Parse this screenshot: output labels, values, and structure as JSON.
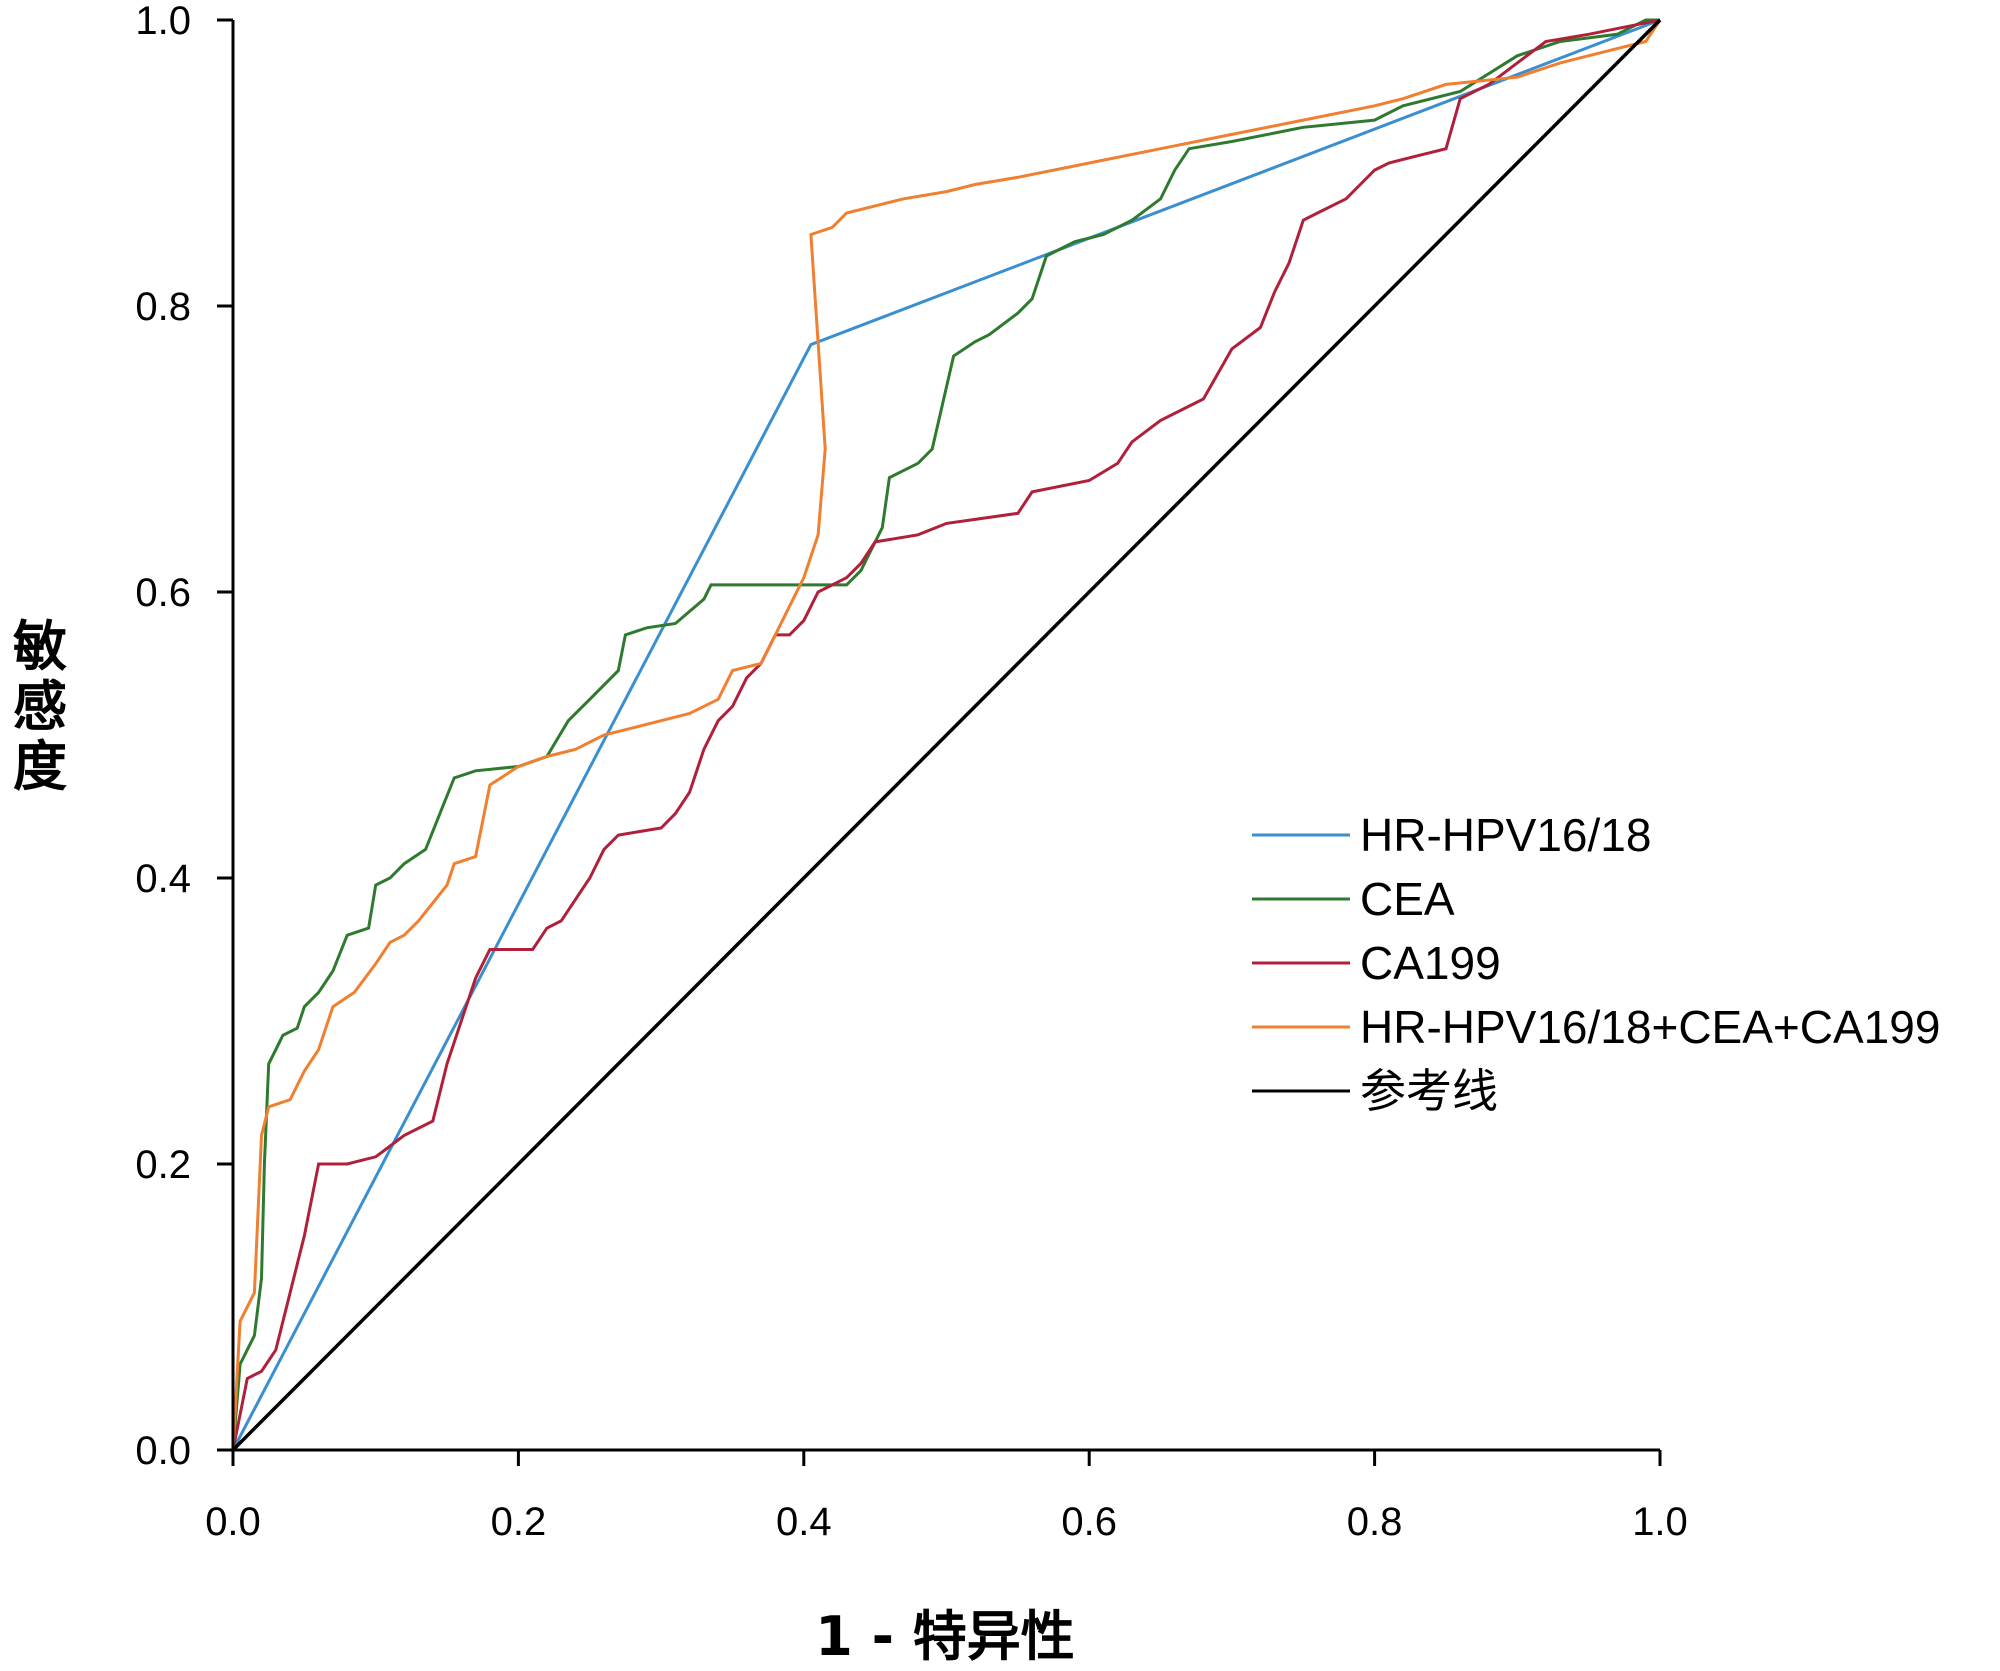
{
  "chart_data": {
    "type": "line",
    "title": "",
    "xlabel": "1 - 特异性",
    "ylabel": "敏感度",
    "xlim": [
      0,
      1
    ],
    "ylim": [
      0,
      1
    ],
    "x_ticks": [
      "0.0",
      "0.2",
      "0.4",
      "0.6",
      "0.8",
      "1.0"
    ],
    "y_ticks": [
      "0.0",
      "0.2",
      "0.4",
      "0.6",
      "0.8",
      "1.0"
    ],
    "legend_position": "right-middle",
    "series": [
      {
        "name": "HR-HPV16/18",
        "color": "#3a8fd0",
        "points": [
          [
            0,
            0
          ],
          [
            0.405,
            0.773
          ],
          [
            1,
            1
          ]
        ]
      },
      {
        "name": "CEA",
        "color": "#2e7a2e",
        "points": [
          [
            0,
            0
          ],
          [
            0.005,
            0.06
          ],
          [
            0.015,
            0.08
          ],
          [
            0.02,
            0.12
          ],
          [
            0.022,
            0.2
          ],
          [
            0.025,
            0.27
          ],
          [
            0.035,
            0.29
          ],
          [
            0.045,
            0.295
          ],
          [
            0.05,
            0.31
          ],
          [
            0.06,
            0.32
          ],
          [
            0.07,
            0.335
          ],
          [
            0.08,
            0.36
          ],
          [
            0.095,
            0.365
          ],
          [
            0.1,
            0.395
          ],
          [
            0.11,
            0.4
          ],
          [
            0.12,
            0.41
          ],
          [
            0.135,
            0.42
          ],
          [
            0.145,
            0.445
          ],
          [
            0.155,
            0.47
          ],
          [
            0.17,
            0.475
          ],
          [
            0.2,
            0.478
          ],
          [
            0.22,
            0.485
          ],
          [
            0.235,
            0.51
          ],
          [
            0.25,
            0.525
          ],
          [
            0.27,
            0.545
          ],
          [
            0.275,
            0.57
          ],
          [
            0.29,
            0.575
          ],
          [
            0.31,
            0.578
          ],
          [
            0.33,
            0.595
          ],
          [
            0.335,
            0.605
          ],
          [
            0.43,
            0.605
          ],
          [
            0.44,
            0.615
          ],
          [
            0.455,
            0.645
          ],
          [
            0.46,
            0.68
          ],
          [
            0.48,
            0.69
          ],
          [
            0.49,
            0.7
          ],
          [
            0.505,
            0.765
          ],
          [
            0.52,
            0.775
          ],
          [
            0.53,
            0.78
          ],
          [
            0.55,
            0.795
          ],
          [
            0.56,
            0.805
          ],
          [
            0.57,
            0.835
          ],
          [
            0.59,
            0.845
          ],
          [
            0.61,
            0.85
          ],
          [
            0.63,
            0.86
          ],
          [
            0.65,
            0.875
          ],
          [
            0.66,
            0.895
          ],
          [
            0.67,
            0.91
          ],
          [
            0.7,
            0.915
          ],
          [
            0.75,
            0.925
          ],
          [
            0.8,
            0.93
          ],
          [
            0.82,
            0.94
          ],
          [
            0.86,
            0.95
          ],
          [
            0.9,
            0.975
          ],
          [
            0.93,
            0.985
          ],
          [
            0.97,
            0.99
          ],
          [
            0.99,
            1
          ],
          [
            1,
            1
          ]
        ]
      },
      {
        "name": "CA199",
        "color": "#b0203a",
        "points": [
          [
            0,
            0
          ],
          [
            0.01,
            0.05
          ],
          [
            0.02,
            0.055
          ],
          [
            0.03,
            0.07
          ],
          [
            0.04,
            0.11
          ],
          [
            0.05,
            0.15
          ],
          [
            0.06,
            0.2
          ],
          [
            0.08,
            0.2
          ],
          [
            0.1,
            0.205
          ],
          [
            0.12,
            0.22
          ],
          [
            0.14,
            0.23
          ],
          [
            0.15,
            0.27
          ],
          [
            0.16,
            0.3
          ],
          [
            0.17,
            0.33
          ],
          [
            0.18,
            0.35
          ],
          [
            0.21,
            0.35
          ],
          [
            0.22,
            0.365
          ],
          [
            0.23,
            0.37
          ],
          [
            0.24,
            0.385
          ],
          [
            0.25,
            0.4
          ],
          [
            0.26,
            0.42
          ],
          [
            0.27,
            0.43
          ],
          [
            0.3,
            0.435
          ],
          [
            0.31,
            0.445
          ],
          [
            0.32,
            0.46
          ],
          [
            0.33,
            0.49
          ],
          [
            0.34,
            0.51
          ],
          [
            0.35,
            0.52
          ],
          [
            0.36,
            0.54
          ],
          [
            0.37,
            0.55
          ],
          [
            0.38,
            0.57
          ],
          [
            0.39,
            0.57
          ],
          [
            0.4,
            0.58
          ],
          [
            0.41,
            0.6
          ],
          [
            0.43,
            0.61
          ],
          [
            0.44,
            0.62
          ],
          [
            0.45,
            0.635
          ],
          [
            0.48,
            0.64
          ],
          [
            0.5,
            0.648
          ],
          [
            0.55,
            0.655
          ],
          [
            0.56,
            0.67
          ],
          [
            0.6,
            0.678
          ],
          [
            0.62,
            0.69
          ],
          [
            0.63,
            0.705
          ],
          [
            0.65,
            0.72
          ],
          [
            0.67,
            0.73
          ],
          [
            0.68,
            0.735
          ],
          [
            0.7,
            0.77
          ],
          [
            0.72,
            0.785
          ],
          [
            0.73,
            0.81
          ],
          [
            0.74,
            0.83
          ],
          [
            0.75,
            0.86
          ],
          [
            0.76,
            0.865
          ],
          [
            0.78,
            0.875
          ],
          [
            0.79,
            0.885
          ],
          [
            0.8,
            0.895
          ],
          [
            0.81,
            0.9
          ],
          [
            0.83,
            0.905
          ],
          [
            0.85,
            0.91
          ],
          [
            0.86,
            0.945
          ],
          [
            0.88,
            0.955
          ],
          [
            0.9,
            0.97
          ],
          [
            0.92,
            0.985
          ],
          [
            0.95,
            0.99
          ],
          [
            1,
            1
          ]
        ]
      },
      {
        "name": "HR-HPV16/18+CEA+CA199",
        "color": "#f07f30",
        "points": [
          [
            0,
            0
          ],
          [
            0.005,
            0.09
          ],
          [
            0.015,
            0.11
          ],
          [
            0.02,
            0.22
          ],
          [
            0.025,
            0.24
          ],
          [
            0.04,
            0.245
          ],
          [
            0.05,
            0.265
          ],
          [
            0.06,
            0.28
          ],
          [
            0.07,
            0.31
          ],
          [
            0.085,
            0.32
          ],
          [
            0.1,
            0.34
          ],
          [
            0.11,
            0.355
          ],
          [
            0.12,
            0.36
          ],
          [
            0.13,
            0.37
          ],
          [
            0.15,
            0.395
          ],
          [
            0.155,
            0.41
          ],
          [
            0.17,
            0.415
          ],
          [
            0.18,
            0.465
          ],
          [
            0.2,
            0.478
          ],
          [
            0.22,
            0.485
          ],
          [
            0.24,
            0.49
          ],
          [
            0.26,
            0.5
          ],
          [
            0.28,
            0.505
          ],
          [
            0.3,
            0.51
          ],
          [
            0.32,
            0.515
          ],
          [
            0.34,
            0.525
          ],
          [
            0.35,
            0.545
          ],
          [
            0.37,
            0.55
          ],
          [
            0.38,
            0.57
          ],
          [
            0.39,
            0.59
          ],
          [
            0.4,
            0.61
          ],
          [
            0.41,
            0.64
          ],
          [
            0.415,
            0.7
          ],
          [
            0.405,
            0.85
          ],
          [
            0.42,
            0.855
          ],
          [
            0.43,
            0.865
          ],
          [
            0.45,
            0.87
          ],
          [
            0.47,
            0.875
          ],
          [
            0.5,
            0.88
          ],
          [
            0.52,
            0.885
          ],
          [
            0.55,
            0.89
          ],
          [
            0.6,
            0.9
          ],
          [
            0.65,
            0.91
          ],
          [
            0.7,
            0.92
          ],
          [
            0.75,
            0.93
          ],
          [
            0.8,
            0.94
          ],
          [
            0.82,
            0.945
          ],
          [
            0.85,
            0.955
          ],
          [
            0.9,
            0.96
          ],
          [
            0.93,
            0.97
          ],
          [
            0.97,
            0.98
          ],
          [
            0.99,
            0.985
          ],
          [
            1,
            1
          ]
        ]
      },
      {
        "name": "参考线",
        "color": "#000000",
        "points": [
          [
            0,
            0
          ],
          [
            1,
            1
          ]
        ]
      }
    ]
  }
}
